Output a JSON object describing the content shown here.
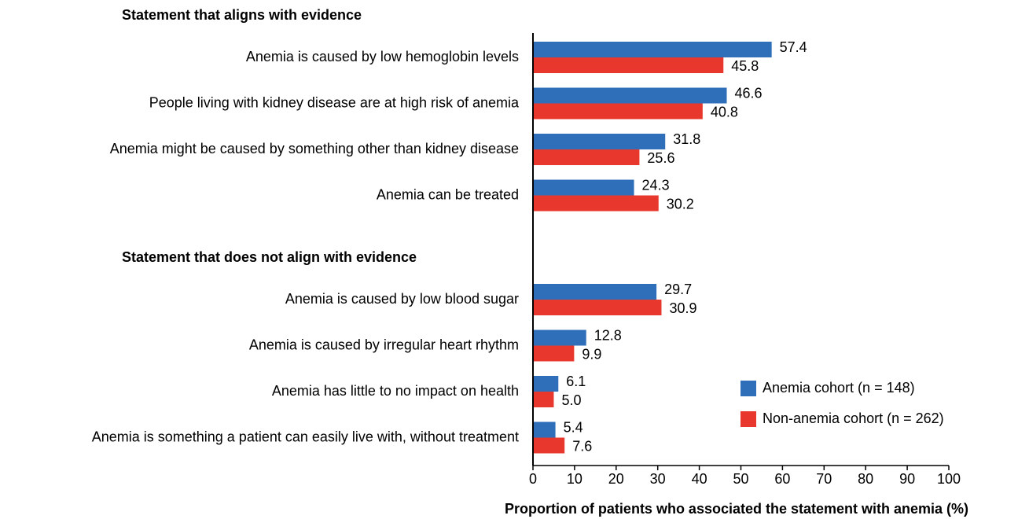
{
  "chart_data": {
    "type": "barh",
    "groups": [
      "Statement that aligns with evidence",
      "Statement that does not align with evidence"
    ],
    "categories": [
      "Anemia is caused by low hemoglobin levels",
      "People living with kidney disease are at high risk of anemia",
      "Anemia might be caused by something other than kidney disease",
      "Anemia can be treated",
      "Anemia is caused by low blood sugar",
      "Anemia is caused by irregular heart rhythm",
      "Anemia has little to no impact on health",
      "Anemia is something a patient can easily live with, without treatment"
    ],
    "series": [
      {
        "name": "Anemia cohort (n = 148)",
        "color": "#2f6fba",
        "values": [
          57.4,
          46.6,
          31.8,
          24.3,
          29.7,
          12.8,
          6.1,
          5.4
        ],
        "value_labels": [
          "57.4",
          "46.6",
          "31.8",
          "24.3",
          "29.7",
          "12.8",
          "6.1",
          "5.4"
        ]
      },
      {
        "name": "Non-anemia cohort (n = 262)",
        "color": "#e8372c",
        "values": [
          45.8,
          40.8,
          25.6,
          30.2,
          30.9,
          9.9,
          5.0,
          7.6
        ],
        "value_labels": [
          "45.8",
          "40.8",
          "25.6",
          "30.2",
          "30.9",
          "9.9",
          "5.0",
          "7.6"
        ]
      }
    ],
    "xlabel": "Proportion of patients who associated the statement with anemia (%)",
    "xlim": [
      0,
      100
    ],
    "xticks": [
      0,
      10,
      20,
      30,
      40,
      50,
      60,
      70,
      80,
      90,
      100
    ],
    "legend": "lower right"
  }
}
